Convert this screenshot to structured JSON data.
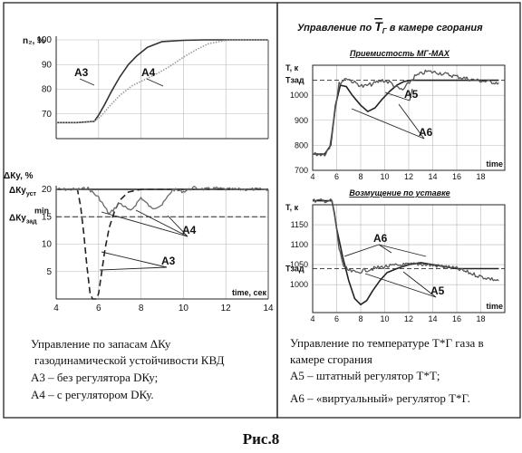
{
  "figure_label": "Рис.8",
  "left_panel": {
    "caption_lines": [
      "Управление по запасам ΔКу",
      "газодинамической устойчивости КВД",
      "А3 – без регулятора DКу;",
      "А4 – с регулятором DКу."
    ]
  },
  "right_panel": {
    "title_prefix": "Управление по ",
    "title_symbol": "Т",
    "title_symbol_sub": "Г",
    "title_suffix": " в камере сгорания",
    "caption_lines": [
      "Управление по температуре Т*Г газа в",
      "камере сгорания",
      "А5 – штатный регулятор Т*Т;",
      "А6 – «виртуальный»  регулятор Т*Г."
    ]
  },
  "chart_data": [
    {
      "id": "n2",
      "type": "line",
      "title": "",
      "ylabel": "n₂, %",
      "xlim": [
        4,
        14
      ],
      "ylim": [
        60,
        100
      ],
      "yticks": [
        70,
        80,
        90,
        100
      ],
      "xticks": [],
      "series": [
        {
          "name": "А3",
          "style": "solid",
          "color": "#333333",
          "x": [
            4.0,
            5.0,
            5.8,
            6.0,
            6.3,
            6.6,
            7.0,
            7.4,
            7.8,
            8.3,
            9.0,
            10.0,
            11.0,
            12.0,
            14.0
          ],
          "y": [
            66.5,
            66.5,
            67.0,
            69.5,
            74.0,
            79.0,
            85.0,
            90.0,
            93.5,
            97.0,
            99.3,
            99.8,
            100,
            100,
            100
          ]
        },
        {
          "name": "А4",
          "style": "dotted",
          "color": "#9a9a9a",
          "x": [
            4.0,
            5.0,
            5.8,
            6.1,
            6.5,
            7.0,
            7.6,
            8.2,
            8.8,
            9.4,
            10.0,
            10.6,
            11.2,
            12.0,
            14.0
          ],
          "y": [
            66.5,
            66.5,
            67.0,
            69.0,
            73.0,
            77.5,
            81.5,
            84.0,
            86.5,
            89.5,
            93.0,
            96.0,
            98.5,
            99.8,
            100
          ]
        }
      ],
      "annotations": [
        "А3",
        "А4"
      ]
    },
    {
      "id": "dky",
      "type": "line",
      "title": "",
      "ylabel": "ΔКу, %",
      "xlabel": "time, сек",
      "xlim": [
        4,
        14
      ],
      "ylim": [
        0,
        20
      ],
      "xticks": [
        4,
        6,
        8,
        10,
        12,
        14
      ],
      "yticks": [
        5,
        10,
        15,
        20
      ],
      "reference_labels": [
        {
          "main": "ΔКу",
          "sub": "уст",
          "value": 20
        },
        {
          "main": "ΔКу",
          "sub": "зад",
          "sup": "min",
          "value": 15
        }
      ],
      "series": [
        {
          "name": "А3",
          "style": "dashed",
          "color": "#222222",
          "x": [
            4.0,
            5.0,
            5.15,
            5.3,
            5.45,
            5.6,
            5.72,
            5.8,
            5.9,
            6.0,
            6.15,
            6.3,
            6.5,
            6.75,
            7.0,
            7.4,
            8.0,
            9.0,
            10.0,
            12.0,
            14.0
          ],
          "y": [
            20,
            20,
            17,
            12,
            6,
            1,
            0,
            0,
            0,
            1,
            5,
            9,
            13,
            16,
            18,
            19.5,
            20,
            20,
            20,
            20,
            20
          ]
        },
        {
          "name": "А4",
          "style": "speckled",
          "color": "#6a6a6a",
          "x": [
            4.0,
            5.0,
            5.5,
            6.0,
            6.5,
            7.0,
            7.5,
            8.0,
            8.5,
            9.0,
            9.5,
            10.0,
            10.5,
            11.0,
            11.5,
            12.0,
            12.5,
            13.0,
            14.0
          ],
          "y": [
            20,
            20,
            20.2,
            18.5,
            15.5,
            17.5,
            16,
            18.5,
            16.5,
            17.2,
            20,
            19.6,
            20.3,
            20,
            20.2,
            20,
            20,
            20,
            20
          ]
        }
      ],
      "annotations": [
        "А4",
        "А3"
      ]
    },
    {
      "id": "tg_accel",
      "type": "line",
      "title": "Приемистость МГ-МАХ",
      "ylabel": "Т, к",
      "xlabel": "time",
      "xlim": [
        4,
        20
      ],
      "ylim": [
        700,
        1120
      ],
      "xticks": [
        4,
        6,
        8,
        10,
        12,
        14,
        16,
        18
      ],
      "yticks": [
        700,
        800,
        900,
        1000
      ],
      "reference_labels": [
        {
          "main": "Тзад",
          "value": 1060
        }
      ],
      "series": [
        {
          "name": "А5",
          "style": "solid",
          "color": "#222222",
          "x": [
            4.0,
            5.0,
            5.5,
            5.9,
            6.3,
            6.8,
            7.3,
            8.0,
            8.6,
            9.2,
            9.8,
            10.4,
            11.0,
            11.6,
            12.2,
            13.0,
            14.0,
            16.0,
            18.0,
            19.5
          ],
          "y": [
            765,
            765,
            800,
            960,
            1040,
            1035,
            1000,
            960,
            935,
            950,
            985,
            1015,
            1040,
            1055,
            1060,
            1060,
            1060,
            1060,
            1060,
            1060
          ]
        },
        {
          "name": "А6",
          "style": "noisy",
          "color": "#555555",
          "x": [
            4.0,
            5.0,
            5.4,
            5.8,
            6.2,
            6.8,
            7.5,
            8.2,
            9.0,
            9.8,
            10.5,
            11.0,
            11.5,
            12.5,
            13.5,
            14.5,
            15.5,
            16.5,
            17.5,
            19.5
          ],
          "y": [
            765,
            765,
            790,
            920,
            1045,
            1070,
            1050,
            1035,
            1045,
            1060,
            1050,
            1030,
            1020,
            1075,
            1095,
            1090,
            1080,
            1070,
            1060,
            1050
          ]
        }
      ],
      "annotations": [
        "А5",
        "А6"
      ]
    },
    {
      "id": "tg_setpoint",
      "type": "line",
      "title": "Возмущение по уставке",
      "ylabel": "Т, к",
      "xlabel": "time",
      "xlim": [
        4,
        20
      ],
      "ylim": [
        930,
        1200
      ],
      "xticks": [
        4,
        6,
        8,
        10,
        12,
        14,
        16,
        18
      ],
      "yticks": [
        1000,
        1050,
        1100,
        1150
      ],
      "reference_labels": [
        {
          "main": "Тзад",
          "value": 1040
        }
      ],
      "series": [
        {
          "name": "А5",
          "style": "solid",
          "color": "#222222",
          "x": [
            4.0,
            5.6,
            5.8,
            6.0,
            6.5,
            7.0,
            7.5,
            8.0,
            8.5,
            9.0,
            9.6,
            10.2,
            11.0,
            12.0,
            13.0,
            14.0,
            15.0,
            16.0,
            17.0,
            19.5
          ],
          "y": [
            1210,
            1210,
            1180,
            1140,
            1070,
            1010,
            965,
            950,
            960,
            985,
            1010,
            1030,
            1040,
            1050,
            1055,
            1050,
            1045,
            1040,
            1040,
            1040
          ]
        },
        {
          "name": "А6",
          "style": "noisy",
          "color": "#555555",
          "x": [
            4.0,
            5.6,
            5.9,
            6.2,
            6.6,
            7.0,
            7.6,
            8.2,
            9.0,
            10.0,
            11.0,
            12.0,
            13.0,
            14.0,
            15.0,
            16.0,
            17.0,
            18.0,
            19.5
          ],
          "y": [
            1210,
            1210,
            1160,
            1090,
            1045,
            1035,
            1030,
            1035,
            1040,
            1045,
            1048,
            1050,
            1052,
            1048,
            1045,
            1040,
            1030,
            1020,
            1010
          ]
        }
      ],
      "annotations": [
        "А6",
        "А5"
      ]
    }
  ]
}
